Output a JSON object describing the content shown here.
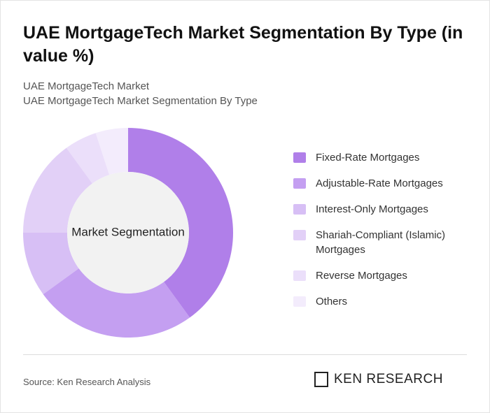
{
  "chart_data": {
    "type": "pie",
    "title": "UAE MortgageTech Market Segmentation By Type (in value %)",
    "subtitle": [
      "UAE MortgageTech Market",
      "UAE MortgageTech Market Segmentation By Type"
    ],
    "center_label": "Market Segmentation",
    "categories": [
      "Fixed-Rate Mortgages",
      "Adjustable-Rate Mortgages",
      "Interest-Only Mortgages",
      "Shariah-Compliant (Islamic) Mortgages",
      "Reverse Mortgages",
      "Others"
    ],
    "values": [
      40,
      25,
      10,
      15,
      5,
      5
    ],
    "colors": [
      "#b07fe9",
      "#c49ff1",
      "#d7bff5",
      "#e2d0f7",
      "#ebdffa",
      "#f3ecfc"
    ],
    "legend": "right",
    "source": "Source: Ken Research Analysis",
    "brand": "KEN RESEARCH"
  }
}
